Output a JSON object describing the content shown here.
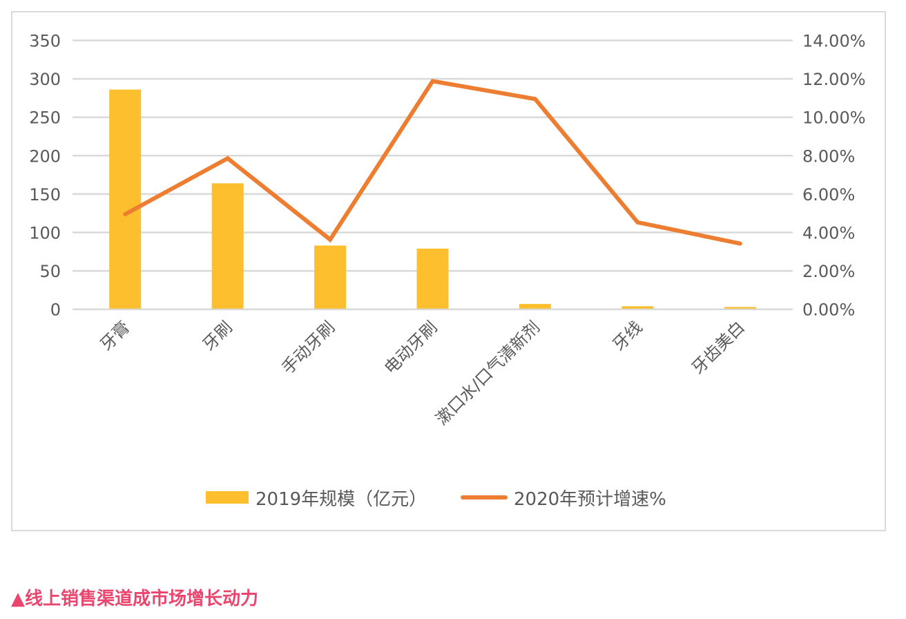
{
  "chart_data": {
    "type": "bar+line",
    "categories": [
      "牙膏",
      "牙刷",
      "手动牙刷",
      "电动牙刷",
      "漱口水/口气清新剂",
      "牙线",
      "牙齿美白"
    ],
    "series": [
      {
        "name": "2019年规模（亿元）",
        "type": "bar",
        "axis": "left",
        "color": "#fdbf2d",
        "values": [
          286,
          164,
          83,
          79,
          7,
          4,
          3
        ]
      },
      {
        "name": "2020年预计增速%",
        "type": "line",
        "axis": "right",
        "color": "#ed7d31",
        "values": [
          4.95,
          7.86,
          3.63,
          11.88,
          10.95,
          4.53,
          3.42
        ]
      }
    ],
    "left_axis": {
      "ylim": [
        0,
        350
      ],
      "ticks": [
        "0",
        "50",
        "100",
        "150",
        "200",
        "250",
        "300",
        "350"
      ]
    },
    "right_axis": {
      "ylim": [
        0,
        14
      ],
      "ticks": [
        "0.00%",
        "2.00%",
        "4.00%",
        "6.00%",
        "8.00%",
        "10.00%",
        "12.00%",
        "14.00%"
      ]
    },
    "grid": true,
    "legend": "bottom"
  },
  "caption": "▲线上销售渠道成市场增长动力"
}
